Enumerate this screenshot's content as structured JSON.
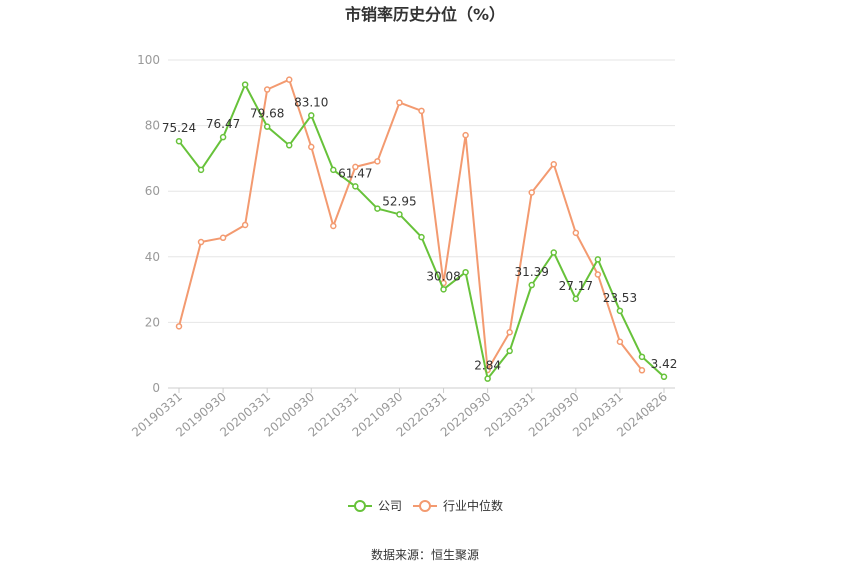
{
  "chart_data": {
    "type": "line",
    "title": "市销率历史分位（%）",
    "ylim": [
      0,
      100
    ],
    "yticks": [
      0,
      20,
      40,
      60,
      80,
      100
    ],
    "x_tick_labels": [
      "20190331",
      "20190930",
      "20200331",
      "20200930",
      "20210331",
      "20210930",
      "20220331",
      "20220930",
      "20230331",
      "20230930",
      "20240331",
      "20240826"
    ],
    "grid": true,
    "legend_position": "bottom",
    "colors": {
      "company": "#67c23a",
      "industry": "#f39a70"
    },
    "series": [
      {
        "name": "公司",
        "values": [
          75.24,
          66.5,
          76.47,
          92.5,
          79.68,
          74.0,
          83.1,
          66.5,
          61.47,
          54.7,
          52.95,
          46.0,
          30.08,
          35.3,
          2.84,
          11.3,
          31.39,
          41.3,
          27.17,
          39.2,
          23.53,
          9.5,
          3.42
        ],
        "data_labels": [
          "75.24",
          "",
          "76.47",
          "",
          "79.68",
          "",
          "83.10",
          "",
          "61.47",
          "",
          "52.95",
          "",
          "30.08",
          "",
          "2.84",
          "",
          "31.39",
          "",
          "27.17",
          "",
          "23.53",
          "",
          "3.42"
        ]
      },
      {
        "name": "行业中位数",
        "values": [
          18.8,
          44.5,
          45.8,
          49.7,
          91.0,
          94.0,
          73.5,
          49.4,
          67.4,
          69.1,
          87.0,
          84.5,
          32.0,
          77.1,
          5.5,
          17.0,
          59.6,
          68.2,
          47.3,
          34.6,
          14.1,
          5.4
        ]
      }
    ]
  },
  "footer": {
    "source": "数据来源：恒生聚源"
  }
}
